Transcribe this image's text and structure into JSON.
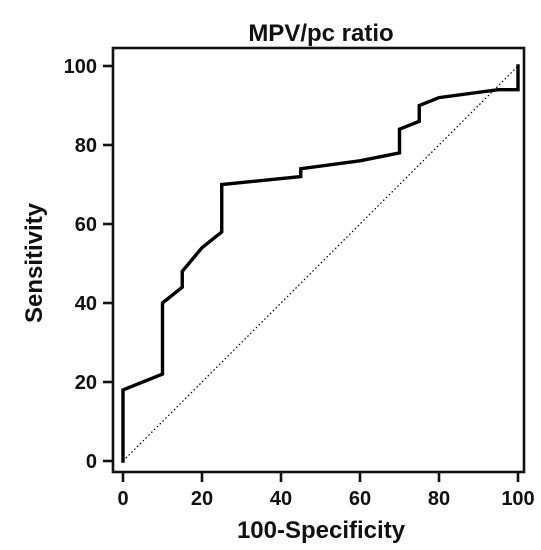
{
  "chart_data": {
    "type": "line",
    "title": "MPV/pc ratio",
    "xlabel": "100-Specificity",
    "ylabel": "Sensitivity",
    "xlim": [
      0,
      100
    ],
    "ylim": [
      0,
      100
    ],
    "x_ticks": [
      0,
      20,
      40,
      60,
      80,
      100
    ],
    "y_ticks": [
      0,
      20,
      40,
      60,
      80,
      100
    ],
    "grid": false,
    "series": [
      {
        "x": [
          0,
          0,
          10,
          10,
          15,
          15,
          20,
          25,
          25,
          45,
          45,
          60,
          70,
          70,
          75,
          75,
          80,
          95,
          100,
          100
        ],
        "y": [
          0,
          18,
          22,
          40,
          44,
          48,
          54,
          58,
          70,
          72,
          74,
          76,
          78,
          84,
          86,
          90,
          92,
          94,
          94,
          100
        ],
        "color": "#000000",
        "style": "solid"
      },
      {
        "x": [
          0,
          100
        ],
        "y": [
          0,
          100
        ],
        "color": "#000000",
        "style": "dotted"
      }
    ]
  }
}
